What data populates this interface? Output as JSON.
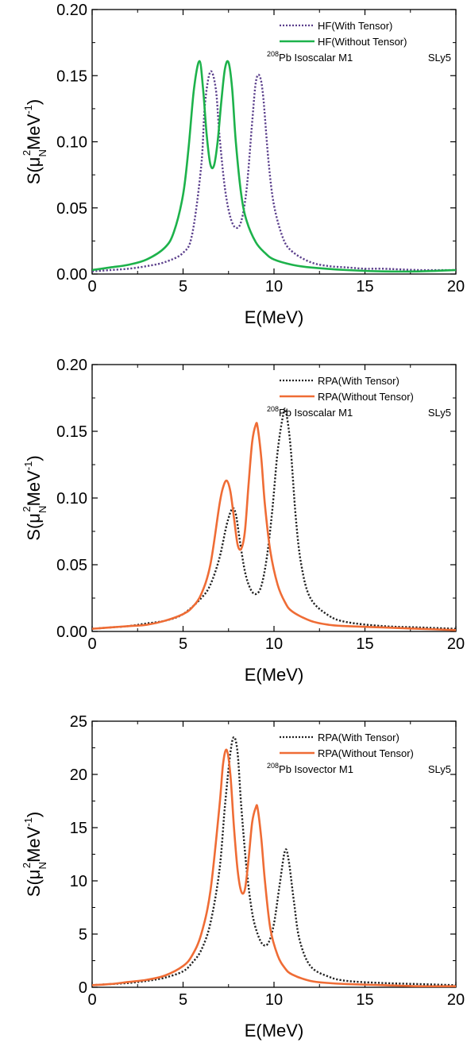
{
  "chart_data": [
    {
      "type": "line",
      "xlabel": "E(MeV)",
      "ylabel_parts": {
        "a": "S(μ",
        "sub": "N",
        "sup": "2",
        "b": "MeV",
        "sup2": "-1",
        "c": ")"
      },
      "xlim": [
        0,
        20
      ],
      "ylim": [
        0,
        0.2
      ],
      "xticks": [
        "0",
        "5",
        "10",
        "15",
        "20"
      ],
      "yticks": [
        "0.00",
        "0.05",
        "0.10",
        "0.15",
        "0.20"
      ],
      "legend_position": "top-right",
      "annotation": {
        "sup": "208",
        "main": "Pb  Isoscalar M1",
        "model": "SLy5"
      },
      "series": [
        {
          "name": "HF(With Tensor)",
          "color": "#5b3f8c",
          "style": "dotted",
          "x": [
            0,
            1,
            2,
            3,
            4,
            5,
            5.5,
            6,
            6.2,
            6.5,
            6.8,
            7,
            7.3,
            7.6,
            7.9,
            8.2,
            8.5,
            8.8,
            9.0,
            9.2,
            9.4,
            9.7,
            10,
            10.5,
            11,
            12,
            13,
            14,
            15,
            16,
            18,
            20
          ],
          "y": [
            0.002,
            0.003,
            0.004,
            0.006,
            0.009,
            0.016,
            0.03,
            0.082,
            0.128,
            0.153,
            0.14,
            0.105,
            0.065,
            0.043,
            0.035,
            0.04,
            0.065,
            0.115,
            0.145,
            0.15,
            0.135,
            0.085,
            0.052,
            0.027,
            0.017,
            0.009,
            0.006,
            0.005,
            0.004,
            0.004,
            0.003,
            0.003
          ]
        },
        {
          "name": "HF(Without Tensor)",
          "color": "#1db24b",
          "style": "solid",
          "x": [
            0,
            1,
            2,
            3,
            4,
            4.5,
            5,
            5.3,
            5.6,
            5.9,
            6.1,
            6.3,
            6.5,
            6.7,
            6.9,
            7.1,
            7.3,
            7.5,
            7.7,
            7.9,
            8.2,
            8.5,
            9,
            9.5,
            10,
            11,
            12,
            14,
            16,
            18,
            20
          ],
          "y": [
            0.003,
            0.005,
            0.007,
            0.011,
            0.02,
            0.032,
            0.06,
            0.095,
            0.14,
            0.161,
            0.14,
            0.105,
            0.083,
            0.082,
            0.1,
            0.13,
            0.155,
            0.16,
            0.14,
            0.1,
            0.06,
            0.04,
            0.024,
            0.016,
            0.011,
            0.007,
            0.005,
            0.003,
            0.002,
            0.002,
            0.003
          ]
        }
      ]
    },
    {
      "type": "line",
      "xlabel": "E(MeV)",
      "ylabel_parts": {
        "a": "S(μ",
        "sub": "N",
        "sup": "2",
        "b": "MeV",
        "sup2": "-1",
        "c": ")"
      },
      "xlim": [
        0,
        20
      ],
      "ylim": [
        0,
        0.2
      ],
      "xticks": [
        "0",
        "5",
        "10",
        "15",
        "20"
      ],
      "yticks": [
        "0.00",
        "0.05",
        "0.10",
        "0.15",
        "0.20"
      ],
      "legend_position": "top-right",
      "annotation": {
        "sup": "208",
        "main": "Pb  Isoscalar M1",
        "model": "SLy5"
      },
      "series": [
        {
          "name": "RPA(With Tensor)",
          "color": "#222222",
          "style": "dotted",
          "x": [
            0,
            1,
            2,
            3,
            4,
            5,
            6,
            6.5,
            7,
            7.4,
            7.7,
            7.9,
            8.1,
            8.4,
            8.7,
            9,
            9.3,
            9.6,
            9.9,
            10.2,
            10.5,
            10.65,
            10.9,
            11.2,
            11.5,
            12,
            13,
            14,
            16,
            18,
            20
          ],
          "y": [
            0.002,
            0.003,
            0.004,
            0.006,
            0.008,
            0.013,
            0.025,
            0.035,
            0.055,
            0.08,
            0.092,
            0.088,
            0.07,
            0.045,
            0.032,
            0.028,
            0.034,
            0.055,
            0.09,
            0.135,
            0.162,
            0.165,
            0.14,
            0.085,
            0.05,
            0.025,
            0.012,
            0.007,
            0.004,
            0.003,
            0.002
          ]
        },
        {
          "name": "RPA(Without Tensor)",
          "color": "#ef6c35",
          "style": "solid",
          "x": [
            0,
            1,
            2,
            3,
            4,
            5,
            5.5,
            6,
            6.5,
            7,
            7.2,
            7.4,
            7.6,
            7.8,
            8.0,
            8.2,
            8.4,
            8.6,
            8.8,
            9.0,
            9.1,
            9.3,
            9.5,
            9.8,
            10.2,
            10.6,
            11,
            12,
            13,
            14,
            16,
            18,
            20
          ],
          "y": [
            0.002,
            0.003,
            0.004,
            0.005,
            0.008,
            0.013,
            0.018,
            0.028,
            0.05,
            0.095,
            0.108,
            0.113,
            0.105,
            0.085,
            0.065,
            0.062,
            0.075,
            0.11,
            0.142,
            0.155,
            0.153,
            0.13,
            0.095,
            0.06,
            0.035,
            0.022,
            0.015,
            0.008,
            0.005,
            0.004,
            0.003,
            0.002,
            0.001
          ]
        }
      ]
    },
    {
      "type": "line",
      "xlabel": "E(MeV)",
      "ylabel_parts": {
        "a": "S(μ",
        "sub": "N",
        "sup": "2",
        "b": "MeV",
        "sup2": "-1",
        "c": ")"
      },
      "xlim": [
        0,
        20
      ],
      "ylim": [
        0,
        25
      ],
      "xticks": [
        "0",
        "5",
        "10",
        "15",
        "20"
      ],
      "yticks": [
        "0",
        "5",
        "10",
        "15",
        "20",
        "25"
      ],
      "legend_position": "top-right",
      "annotation": {
        "sup": "208",
        "main": "Pb  Isovector M1",
        "model": "SLy5"
      },
      "series": [
        {
          "name": "RPA(With Tensor)",
          "color": "#222222",
          "style": "dotted",
          "x": [
            0,
            1,
            2,
            3,
            4,
            5,
            5.5,
            6,
            6.5,
            7,
            7.3,
            7.6,
            7.8,
            8.0,
            8.2,
            8.5,
            8.8,
            9.1,
            9.4,
            9.7,
            10,
            10.3,
            10.6,
            10.8,
            11.1,
            11.4,
            12,
            13,
            14,
            16,
            18,
            20
          ],
          "y": [
            0.2,
            0.3,
            0.4,
            0.6,
            0.9,
            1.5,
            2.3,
            3.5,
            6,
            11,
            17,
            22,
            23.5,
            22,
            17,
            11,
            7,
            5,
            4,
            4.2,
            6,
            9.5,
            12.8,
            12,
            8,
            4.5,
            2,
            1,
            0.6,
            0.4,
            0.3,
            0.2
          ]
        },
        {
          "name": "RPA(Without Tensor)",
          "color": "#ef6c35",
          "style": "solid",
          "x": [
            0,
            1,
            2,
            3,
            4,
            5,
            5.5,
            6,
            6.5,
            7,
            7.2,
            7.4,
            7.6,
            7.8,
            8.0,
            8.2,
            8.4,
            8.6,
            8.8,
            9.0,
            9.1,
            9.3,
            9.5,
            9.8,
            10.2,
            10.6,
            11,
            12,
            13,
            14,
            16,
            18,
            20
          ],
          "y": [
            0.2,
            0.3,
            0.5,
            0.7,
            1.1,
            2,
            3,
            5,
            9,
            17,
            21,
            22.3,
            20,
            15,
            11,
            9,
            9.2,
            12,
            15.5,
            16.9,
            16.8,
            14,
            10,
            5.5,
            3,
            1.8,
            1.2,
            0.6,
            0.4,
            0.3,
            0.2,
            0.1,
            0.1
          ]
        }
      ]
    }
  ]
}
